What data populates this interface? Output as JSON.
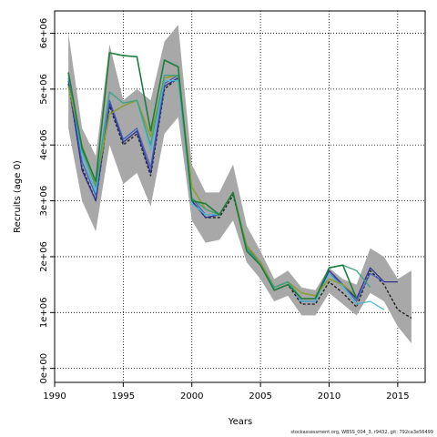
{
  "chart_data": {
    "type": "line",
    "xlabel": "Years",
    "ylabel": "Recruits (age 0)",
    "xlim": [
      1990,
      2017
    ],
    "ylim": [
      -250000,
      6400000
    ],
    "x_ticks": [
      1990,
      1995,
      2000,
      2005,
      2010,
      2015
    ],
    "y_ticks": [
      0,
      1000000,
      2000000,
      3000000,
      4000000,
      5000000,
      6000000
    ],
    "y_tick_labels": [
      "0e+00",
      "1e+06",
      "2e+06",
      "3e+06",
      "4e+06",
      "5e+06",
      "6e+06"
    ],
    "grid": true,
    "legend": "none",
    "colors": {
      "ci_band": "#a8a8a8",
      "black": "#222222",
      "navy": "#2e3192",
      "blue": "#3f5fbf",
      "cyan": "#4fb8d8",
      "green": "#1e7d3a",
      "olive": "#8e9c2e",
      "teal": "#3aa383"
    },
    "ci_band": {
      "x": [
        1991,
        1992,
        1993,
        1994,
        1995,
        1996,
        1997,
        1998,
        1999,
        2000,
        2001,
        2002,
        2003,
        2004,
        2005,
        2006,
        2007,
        2008,
        2009,
        2010,
        2011,
        2012,
        2013,
        2014,
        2015,
        2016
      ],
      "upper": [
        6000000,
        4300000,
        3800000,
        5800000,
        4800000,
        5000000,
        4800000,
        5850000,
        6150000,
        3650000,
        3150000,
        3150000,
        3650000,
        2550000,
        2100000,
        1600000,
        1750000,
        1450000,
        1400000,
        1800000,
        1600000,
        1500000,
        2150000,
        2000000,
        1600000,
        1750000
      ],
      "lower": [
        4300000,
        3000000,
        2450000,
        4000000,
        3300000,
        3500000,
        2900000,
        4200000,
        4500000,
        2650000,
        2250000,
        2300000,
        2650000,
        1900000,
        1600000,
        1200000,
        1300000,
        950000,
        950000,
        1350000,
        1150000,
        950000,
        1350000,
        1200000,
        750000,
        450000
      ]
    },
    "series": [
      {
        "color": "black",
        "width": 1.4,
        "dash": "3,2",
        "x": [
          1991,
          1992,
          1993,
          1994,
          1995,
          1996,
          1997,
          1998,
          1999,
          2000,
          2001,
          2002,
          2003,
          2004,
          2005,
          2006,
          2007,
          2008,
          2009,
          2010,
          2011,
          2012,
          2013,
          2014,
          2015,
          2016
        ],
        "y": [
          5100000,
          3600000,
          3000000,
          4700000,
          4000000,
          4200000,
          3450000,
          5000000,
          5200000,
          3000000,
          2700000,
          2700000,
          3100000,
          2200000,
          1900000,
          1400000,
          1500000,
          1150000,
          1150000,
          1550000,
          1350000,
          1100000,
          1750000,
          1500000,
          1050000,
          900000
        ]
      },
      {
        "color": "navy",
        "width": 1.3,
        "dash": "",
        "x": [
          1991,
          1992,
          1993,
          1994,
          1995,
          1996,
          1997,
          1998,
          1999,
          2000,
          2001,
          2002,
          2003,
          2004,
          2005,
          2006,
          2007,
          2008,
          2009,
          2010,
          2011,
          2012,
          2013,
          2014,
          2015
        ],
        "y": [
          5150000,
          3550000,
          3000000,
          4750000,
          4050000,
          4250000,
          3500000,
          5050000,
          5200000,
          3000000,
          2700000,
          2750000,
          3150000,
          2150000,
          1900000,
          1450000,
          1550000,
          1200000,
          1200000,
          1750000,
          1500000,
          1250000,
          1800000,
          1550000,
          1550000
        ]
      },
      {
        "color": "blue",
        "width": 1.2,
        "dash": "",
        "x": [
          1991,
          1992,
          1993,
          1994,
          1995,
          1996,
          1997,
          1998,
          1999,
          2000,
          2001,
          2002,
          2003,
          2004,
          2005,
          2006,
          2007,
          2008,
          2009,
          2010,
          2011,
          2012,
          2013,
          2014
        ],
        "y": [
          5200000,
          3700000,
          3100000,
          4800000,
          4100000,
          4300000,
          3600000,
          5100000,
          5250000,
          3050000,
          2750000,
          2750000,
          3150000,
          2150000,
          1900000,
          1450000,
          1550000,
          1200000,
          1200000,
          1700000,
          1500000,
          1200000,
          1700000,
          1550000
        ]
      },
      {
        "color": "cyan",
        "width": 1.3,
        "dash": "",
        "x": [
          1991,
          1992,
          1993,
          1994,
          1995,
          1996,
          1997,
          1998,
          1999,
          2000,
          2001,
          2002,
          2003,
          2004,
          2005,
          2006,
          2007,
          2008,
          2009,
          2010,
          2011,
          2012,
          2013,
          2014
        ],
        "y": [
          5300000,
          3800000,
          3150000,
          4950000,
          4750000,
          4800000,
          3900000,
          5150000,
          5150000,
          2950000,
          2750000,
          2750000,
          3150000,
          2150000,
          1850000,
          1450000,
          1550000,
          1200000,
          1200000,
          1700000,
          1450000,
          1150000,
          1200000,
          1050000
        ]
      },
      {
        "color": "olive",
        "width": 1.5,
        "dash": "",
        "x": [
          1991,
          1992,
          1993,
          1994,
          1995,
          1996,
          1997,
          1998,
          1999,
          2000,
          2001,
          2002,
          2003,
          2004,
          2005,
          2006,
          2007,
          2008,
          2009,
          2010,
          2011,
          2012
        ],
        "y": [
          5050000,
          4000000,
          3300000,
          4550000,
          4700000,
          4800000,
          4150000,
          5200000,
          5250000,
          3250000,
          2850000,
          2750000,
          3150000,
          2200000,
          1900000,
          1450000,
          1550000,
          1350000,
          1300000,
          1600000,
          1500000,
          1300000
        ]
      },
      {
        "color": "teal",
        "width": 1.3,
        "dash": "",
        "x": [
          1991,
          1992,
          1993,
          1994,
          1995,
          1996,
          1997,
          1998,
          1999,
          2000,
          2001,
          2002,
          2003,
          2004,
          2005,
          2006,
          2007,
          2008,
          2009,
          2010,
          2011,
          2012,
          2013
        ],
        "y": [
          5250000,
          3900000,
          3250000,
          4950000,
          4750000,
          4800000,
          4000000,
          5250000,
          5250000,
          3050000,
          2850000,
          2750000,
          3150000,
          2150000,
          1850000,
          1450000,
          1550000,
          1250000,
          1250000,
          1800000,
          1850000,
          1750000,
          1450000
        ]
      },
      {
        "color": "green",
        "width": 1.6,
        "dash": "",
        "x": [
          1991,
          1992,
          1993,
          1994,
          1995,
          1996,
          1997,
          1998,
          1999,
          2000,
          2001,
          2002,
          2003,
          2004,
          2005,
          2006,
          2007,
          2008,
          2009,
          2010,
          2011,
          2012
        ],
        "y": [
          5300000,
          3950000,
          3350000,
          5650000,
          5600000,
          5580000,
          4250000,
          5520000,
          5400000,
          3000000,
          2950000,
          2750000,
          3150000,
          2100000,
          1850000,
          1400000,
          1500000,
          1250000,
          1250000,
          1800000,
          1850000,
          1250000
        ]
      }
    ]
  },
  "footer": {
    "note": "stockassessment.org, WBSS_004_3, r9432, git: 792ca3e56499"
  }
}
